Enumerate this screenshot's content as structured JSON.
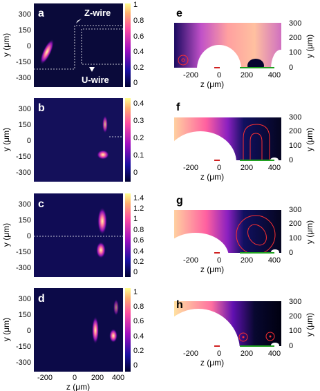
{
  "figure": {
    "left_panels": [
      {
        "letter": "a",
        "cbar_ticks": [
          "1",
          "0.8",
          "0.6",
          "0.4",
          "0.2",
          "0"
        ],
        "annot_z": "Z-wire",
        "annot_u": "U-wire"
      },
      {
        "letter": "b",
        "cbar_ticks": [
          "0.4",
          "0.3",
          "0.2",
          "0.1",
          "0"
        ]
      },
      {
        "letter": "c",
        "cbar_ticks": [
          "1.4",
          "1.2",
          "1",
          "0.8",
          "0.6",
          "0.4",
          "0.2",
          "0"
        ]
      },
      {
        "letter": "d",
        "cbar_ticks": [
          "1",
          "0.8",
          "0.6",
          "0.4",
          "0.2",
          "0"
        ]
      }
    ],
    "right_panels": [
      {
        "letter": "e"
      },
      {
        "letter": "f"
      },
      {
        "letter": "g"
      },
      {
        "letter": "h"
      }
    ],
    "left_y_ticks": [
      "300",
      "150",
      "0",
      "-150",
      "-300"
    ],
    "left_x_ticks": [
      "-200",
      "0",
      "200",
      "400"
    ],
    "right_y_ticks": [
      "300",
      "200",
      "100",
      "0"
    ],
    "right_x_ticks": [
      "-200",
      "0",
      "200",
      "400"
    ],
    "ylabel": "y (μm)",
    "xlabel": "z (μm)"
  }
}
